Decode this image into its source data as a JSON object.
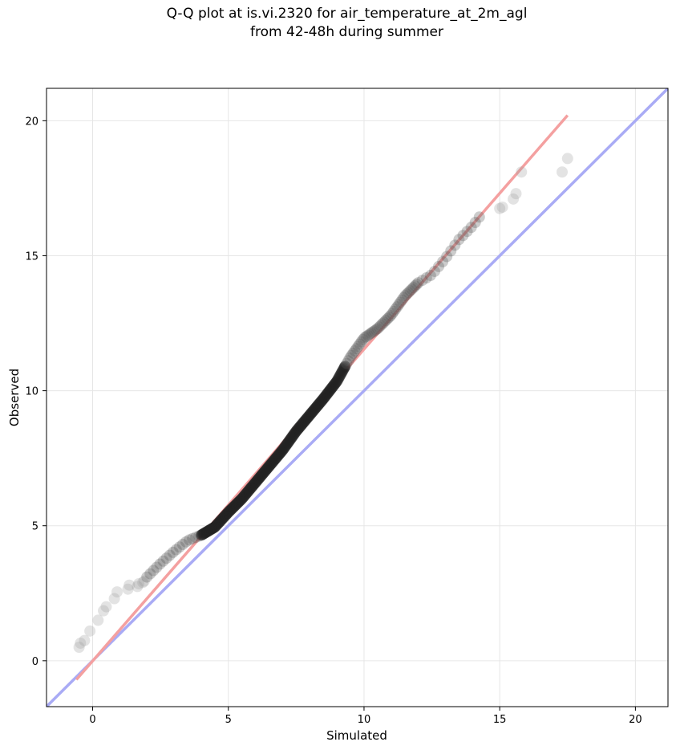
{
  "chart_data": {
    "type": "scatter",
    "title": [
      "Q-Q plot at is.vi.2320 for air_temperature_at_2m_agl",
      "from 42-48h during summer"
    ],
    "xlabel": "Simulated",
    "ylabel": "Observed",
    "xlim": [
      -1.7,
      21.2
    ],
    "ylim": [
      -1.7,
      21.2
    ],
    "xticks": [
      0,
      5,
      10,
      15,
      20
    ],
    "yticks": [
      0,
      5,
      10,
      15,
      20
    ],
    "grid": true,
    "colors": {
      "points": "#333333",
      "fit_line": "#f4a0a0",
      "identity_line": "#a9abf5",
      "grid": "#e6e6e6"
    },
    "lines": [
      {
        "name": "fit",
        "x": [
          -0.6,
          17.5
        ],
        "y": [
          -0.7,
          20.2
        ]
      },
      {
        "name": "identity",
        "x": [
          -1.7,
          21.2
        ],
        "y": [
          -1.7,
          21.2
        ]
      }
    ],
    "tail_points": {
      "x": [
        -0.5,
        -0.45,
        -0.3,
        -0.1,
        0.2,
        0.4,
        0.5,
        0.8,
        0.9,
        1.3,
        1.35,
        1.65,
        1.7,
        1.85,
        1.9,
        15.0,
        15.1,
        15.5,
        15.6,
        15.8,
        17.3,
        17.5
      ],
      "y": [
        0.5,
        0.65,
        0.75,
        1.1,
        1.5,
        1.85,
        2.0,
        2.3,
        2.55,
        2.65,
        2.8,
        2.75,
        2.85,
        2.9,
        2.95,
        16.75,
        16.8,
        17.1,
        17.3,
        18.1,
        18.1,
        18.6
      ]
    },
    "body_quantiles": {
      "x": [
        2.0,
        2.5,
        3.0,
        3.5,
        4.0,
        4.5,
        5.0,
        5.5,
        6.0,
        6.5,
        7.0,
        7.5,
        8.0,
        8.5,
        9.0,
        9.3,
        9.5,
        10.0,
        10.5,
        11.0,
        11.5,
        12.0,
        12.5,
        13.0,
        13.5,
        14.0,
        14.3
      ],
      "y": [
        3.1,
        3.6,
        4.05,
        4.45,
        4.65,
        4.95,
        5.5,
        6.0,
        6.6,
        7.2,
        7.8,
        8.5,
        9.1,
        9.7,
        10.35,
        10.9,
        11.25,
        11.95,
        12.3,
        12.8,
        13.5,
        14.0,
        14.3,
        14.9,
        15.6,
        16.1,
        16.5
      ]
    }
  }
}
